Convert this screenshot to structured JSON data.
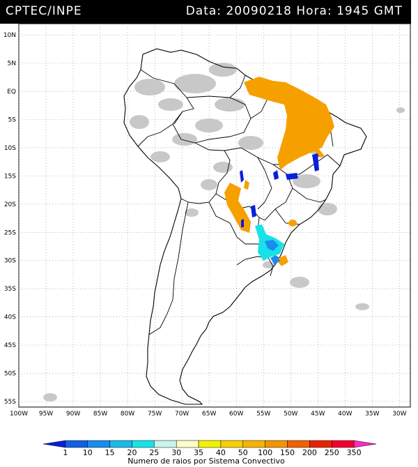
{
  "header": {
    "source": "CPTEC/INPE",
    "timestamp": "Data: 20090218 Hora: 1945 GMT"
  },
  "map": {
    "lat_labels": [
      "10N",
      "5N",
      "EQ",
      "5S",
      "10S",
      "15S",
      "20S",
      "25S",
      "30S",
      "35S",
      "40S",
      "45S",
      "50S",
      "55S"
    ],
    "lon_labels": [
      "100W",
      "95W",
      "90W",
      "85W",
      "80W",
      "75W",
      "70W",
      "65W",
      "60W",
      "55W",
      "50W",
      "45W",
      "40W",
      "35W",
      "30W"
    ],
    "extent": {
      "lon_min": -100,
      "lon_max": -28,
      "lat_min": -56,
      "lat_max": 12
    }
  },
  "legend": {
    "ticks": [
      "1",
      "10",
      "15",
      "20",
      "25",
      "30",
      "35",
      "40",
      "50",
      "100",
      "150",
      "200",
      "250",
      "350"
    ],
    "colors": [
      "#0a1fd9",
      "#1060e6",
      "#1a8cf0",
      "#19b9ea",
      "#16e2e8",
      "#c8f4ec",
      "#fffcc8",
      "#f2f200",
      "#f6cf00",
      "#f6b400",
      "#f29500",
      "#f26000",
      "#e82200",
      "#f20030",
      "#ff2bc0"
    ],
    "title": "Numero de raios por Sistema Convectivo"
  }
}
